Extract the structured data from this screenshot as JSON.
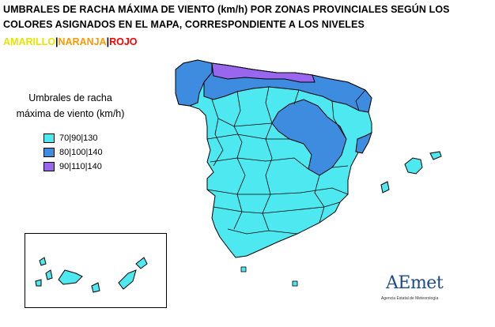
{
  "header": {
    "title": "UMBRALES DE RACHA MÁXIMA DE VIENTO (km/h) POR ZONAS PROVINCIALES SEGÚN LOS COLORES ASIGNADOS EN EL MAPA, CORRESPONDIENTE  A  LOS  NIVELES",
    "levels": [
      {
        "label": "AMARILLO",
        "color": "#ffff00"
      },
      {
        "label": "NARANJA",
        "color": "#ff9900"
      },
      {
        "label": "ROJO",
        "color": "#ff0000"
      }
    ],
    "separator": "|"
  },
  "legend": {
    "title": "Umbrales de racha máxima de viento (km/h)",
    "items": [
      {
        "label": "70|90|130",
        "color": "#4de8f0"
      },
      {
        "label": "80|100|140",
        "color": "#3d8ce0"
      },
      {
        "label": "90|110|140",
        "color": "#9966ee"
      }
    ]
  },
  "logo": {
    "name": "AEmet",
    "subtitle": "Agencia Estatal de Meteorología"
  }
}
